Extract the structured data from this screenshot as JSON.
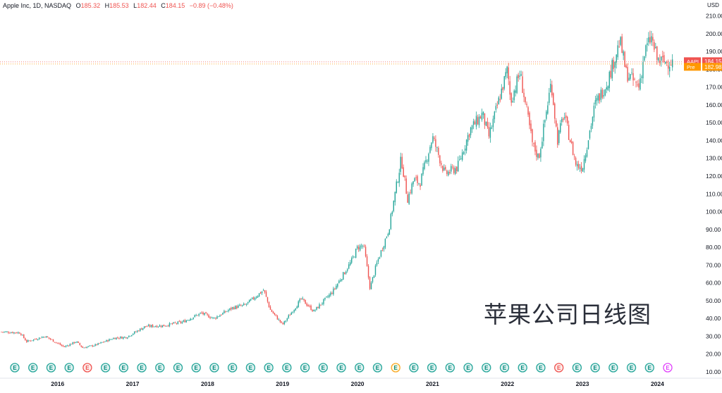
{
  "header": {
    "symbol": "Apple Inc, 1D, NASDAQ",
    "o_label": "O",
    "o_value": "185.32",
    "h_label": "H",
    "h_value": "185.53",
    "l_label": "L",
    "l_value": "182.44",
    "c_label": "C",
    "c_value": "184.15",
    "change": "−0.89 (−0.48%)"
  },
  "axis": {
    "currency": "USD"
  },
  "price_tags": {
    "aapl_label": "AAPL",
    "aapl_value": "184.15",
    "pre_label": "Pre",
    "pre_value": "182.98"
  },
  "watermark": "苹果公司日线图",
  "colors": {
    "up": "#26a69a",
    "down": "#ef5350",
    "aapl_tag": "#ef5350",
    "pre_tag": "#ff9800",
    "earnings_icon": "#26a69a",
    "earnings_icon_alt": "#ef5350",
    "earnings_icon_future": "#e040fb"
  },
  "earnings_events": [
    {
      "label": "E",
      "status": "beat"
    },
    {
      "label": "E",
      "status": "beat"
    },
    {
      "label": "E",
      "status": "beat"
    },
    {
      "label": "E",
      "status": "beat"
    },
    {
      "label": "E",
      "status": "miss"
    },
    {
      "label": "E",
      "status": "beat"
    },
    {
      "label": "E",
      "status": "beat"
    },
    {
      "label": "E",
      "status": "beat"
    },
    {
      "label": "E",
      "status": "beat"
    },
    {
      "label": "E",
      "status": "beat"
    },
    {
      "label": "E",
      "status": "beat"
    },
    {
      "label": "E",
      "status": "beat"
    },
    {
      "label": "E",
      "status": "beat"
    },
    {
      "label": "E",
      "status": "beat"
    },
    {
      "label": "E",
      "status": "beat"
    },
    {
      "label": "E",
      "status": "beat"
    },
    {
      "label": "E",
      "status": "beat"
    },
    {
      "label": "E",
      "status": "beat"
    },
    {
      "label": "E",
      "status": "beat"
    },
    {
      "label": "E",
      "status": "beat"
    },
    {
      "label": "E",
      "status": "beat"
    },
    {
      "label": "E",
      "status": "mixed"
    },
    {
      "label": "E",
      "status": "beat"
    },
    {
      "label": "E",
      "status": "beat"
    },
    {
      "label": "E",
      "status": "beat"
    },
    {
      "label": "E",
      "status": "beat"
    },
    {
      "label": "E",
      "status": "beat"
    },
    {
      "label": "E",
      "status": "beat"
    },
    {
      "label": "E",
      "status": "beat"
    },
    {
      "label": "E",
      "status": "beat"
    },
    {
      "label": "E",
      "status": "miss"
    },
    {
      "label": "E",
      "status": "beat"
    },
    {
      "label": "E",
      "status": "beat"
    },
    {
      "label": "E",
      "status": "beat"
    },
    {
      "label": "E",
      "status": "beat"
    },
    {
      "label": "E",
      "status": "beat"
    },
    {
      "label": "E",
      "status": "future"
    }
  ],
  "chart_data": {
    "type": "candlestick",
    "title": "",
    "xlabel": "",
    "ylabel": "USD",
    "x_ticks": [
      "2016",
      "2017",
      "2018",
      "2019",
      "2020",
      "2021",
      "2022",
      "2023",
      "2024"
    ],
    "y_ticks": [
      10,
      20,
      30,
      40,
      50,
      60,
      70,
      80,
      90,
      100,
      110,
      120,
      130,
      140,
      150,
      160,
      170,
      180,
      190,
      200,
      210
    ],
    "y_tick_labels": [
      "10.00",
      "20.00",
      "30.00",
      "40.00",
      "50.00",
      "60.00",
      "70.00",
      "80.00",
      "90.00",
      "100.00",
      "110.00",
      "120.00",
      "130.00",
      "140.00",
      "150.00",
      "160.00",
      "170.00",
      "180.00",
      "190.00",
      "200.00",
      "210.00"
    ],
    "xlim": [
      "2015-04",
      "2024-04"
    ],
    "ylim": [
      8,
      213
    ],
    "grid": false,
    "series": [
      {
        "key_points": [
          {
            "date": "2015-04",
            "close": 32.5
          },
          {
            "date": "2015-07",
            "close": 32.0
          },
          {
            "date": "2015-08",
            "close": 27.0
          },
          {
            "date": "2015-11",
            "close": 30.0
          },
          {
            "date": "2016-02",
            "close": 24.0
          },
          {
            "date": "2016-04",
            "close": 27.0
          },
          {
            "date": "2016-05",
            "close": 23.5
          },
          {
            "date": "2016-07",
            "close": 25.0
          },
          {
            "date": "2016-10",
            "close": 29.0
          },
          {
            "date": "2016-12",
            "close": 29.5
          },
          {
            "date": "2017-03",
            "close": 35.5
          },
          {
            "date": "2017-06",
            "close": 36.0
          },
          {
            "date": "2017-09",
            "close": 38.0
          },
          {
            "date": "2017-12",
            "close": 43.0
          },
          {
            "date": "2018-02",
            "close": 40.0
          },
          {
            "date": "2018-05",
            "close": 46.0
          },
          {
            "date": "2018-07",
            "close": 47.5
          },
          {
            "date": "2018-10",
            "close": 56.0
          },
          {
            "date": "2018-11",
            "close": 45.0
          },
          {
            "date": "2019-01",
            "close": 36.5
          },
          {
            "date": "2019-04",
            "close": 51.0
          },
          {
            "date": "2019-06",
            "close": 44.0
          },
          {
            "date": "2019-09",
            "close": 55.0
          },
          {
            "date": "2019-12",
            "close": 72.0
          },
          {
            "date": "2020-01",
            "close": 80.0
          },
          {
            "date": "2020-02",
            "close": 81.0
          },
          {
            "date": "2020-03",
            "close": 57.0
          },
          {
            "date": "2020-04",
            "close": 70.0
          },
          {
            "date": "2020-06",
            "close": 90.0
          },
          {
            "date": "2020-08",
            "close": 130.0
          },
          {
            "date": "2020-09",
            "close": 107.0
          },
          {
            "date": "2020-10",
            "close": 118.0
          },
          {
            "date": "2020-11",
            "close": 116.0
          },
          {
            "date": "2021-01",
            "close": 142.0
          },
          {
            "date": "2021-03",
            "close": 121.0
          },
          {
            "date": "2021-05",
            "close": 125.0
          },
          {
            "date": "2021-07",
            "close": 146.0
          },
          {
            "date": "2021-09",
            "close": 155.0
          },
          {
            "date": "2021-10",
            "close": 142.0
          },
          {
            "date": "2022-01",
            "close": 180.0
          },
          {
            "date": "2022-01",
            "close": 162.0
          },
          {
            "date": "2022-03",
            "close": 178.0
          },
          {
            "date": "2022-05",
            "close": 138.0
          },
          {
            "date": "2022-06",
            "close": 130.0
          },
          {
            "date": "2022-08",
            "close": 173.0
          },
          {
            "date": "2022-09",
            "close": 140.0
          },
          {
            "date": "2022-10",
            "close": 155.0
          },
          {
            "date": "2022-12",
            "close": 126.0
          },
          {
            "date": "2023-01",
            "close": 125.0
          },
          {
            "date": "2023-03",
            "close": 160.0
          },
          {
            "date": "2023-05",
            "close": 173.0
          },
          {
            "date": "2023-07",
            "close": 196.0
          },
          {
            "date": "2023-08",
            "close": 178.0
          },
          {
            "date": "2023-10",
            "close": 170.0
          },
          {
            "date": "2023-11",
            "close": 190.0
          },
          {
            "date": "2023-12",
            "close": 198.0
          },
          {
            "date": "2024-01",
            "close": 185.0
          },
          {
            "date": "2024-02",
            "close": 184.15
          }
        ]
      }
    ]
  }
}
